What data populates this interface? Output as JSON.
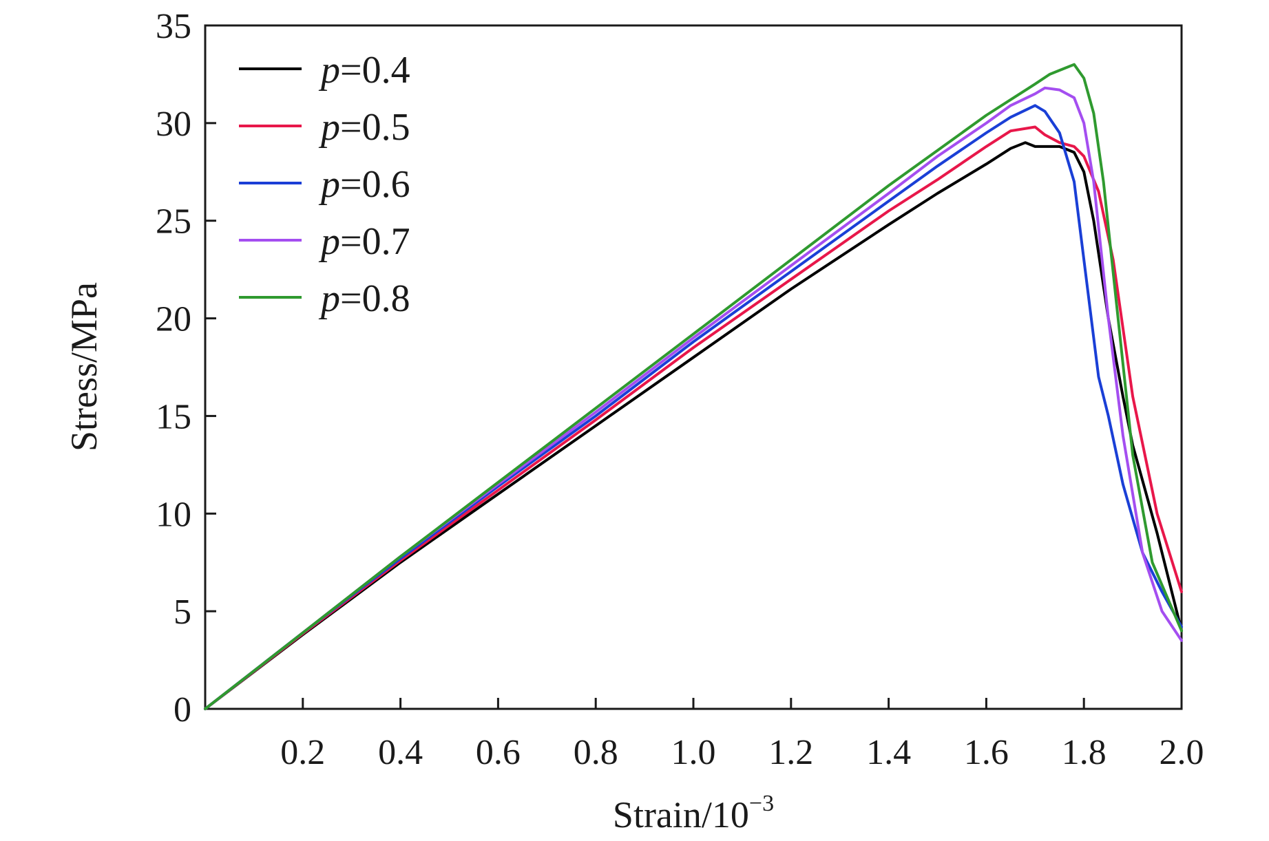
{
  "chart_data": {
    "type": "line",
    "xlabel_base": "Strain/10",
    "xlabel_exp": "−3",
    "ylabel": "Stress/MPa",
    "xlim": [
      0,
      2.0
    ],
    "ylim": [
      0,
      35
    ],
    "x_ticks": [
      0.2,
      0.4,
      0.6,
      0.8,
      1.0,
      1.2,
      1.4,
      1.6,
      1.8,
      2.0
    ],
    "x_tick_labels": [
      "0.2",
      "0.4",
      "0.6",
      "0.8",
      "1.0",
      "1.2",
      "1.4",
      "1.6",
      "1.8",
      "2.0"
    ],
    "y_ticks": [
      0,
      5,
      10,
      15,
      20,
      25,
      30,
      35
    ],
    "y_tick_labels": [
      "0",
      "5",
      "10",
      "15",
      "20",
      "25",
      "30",
      "35"
    ],
    "grid": false,
    "legend_position": "top-left",
    "series": [
      {
        "name_var": "p",
        "name_value": "=0.4",
        "color": "#000000",
        "x": [
          0,
          0.2,
          0.4,
          0.6,
          0.8,
          1.0,
          1.2,
          1.4,
          1.5,
          1.6,
          1.65,
          1.68,
          1.7,
          1.75,
          1.78,
          1.8,
          1.82,
          1.85,
          1.88,
          1.9,
          1.95,
          2.0
        ],
        "y": [
          0,
          3.8,
          7.5,
          11.0,
          14.5,
          18.0,
          21.5,
          24.8,
          26.4,
          27.9,
          28.7,
          29.0,
          28.8,
          28.8,
          28.5,
          27.5,
          25.0,
          20.0,
          16.0,
          13.5,
          9.0,
          4.0
        ]
      },
      {
        "name_var": "p",
        "name_value": "=0.5",
        "color": "#e8174a",
        "x": [
          0,
          0.2,
          0.4,
          0.6,
          0.8,
          1.0,
          1.2,
          1.4,
          1.5,
          1.6,
          1.65,
          1.7,
          1.72,
          1.75,
          1.78,
          1.8,
          1.83,
          1.86,
          1.9,
          1.95,
          2.0
        ],
        "y": [
          0,
          3.85,
          7.6,
          11.2,
          14.8,
          18.5,
          22.0,
          25.5,
          27.1,
          28.8,
          29.6,
          29.8,
          29.4,
          29.0,
          28.8,
          28.3,
          26.5,
          23.0,
          16.0,
          10.0,
          6.0
        ]
      },
      {
        "name_var": "p",
        "name_value": "=0.6",
        "color": "#1a3fd6",
        "x": [
          0,
          0.2,
          0.4,
          0.6,
          0.8,
          1.0,
          1.2,
          1.4,
          1.5,
          1.6,
          1.65,
          1.7,
          1.72,
          1.75,
          1.78,
          1.8,
          1.83,
          1.85,
          1.88,
          1.92,
          1.96,
          2.0
        ],
        "y": [
          0,
          3.9,
          7.7,
          11.4,
          15.0,
          18.8,
          22.4,
          26.0,
          27.8,
          29.5,
          30.3,
          30.9,
          30.6,
          29.5,
          27.0,
          23.0,
          17.0,
          15.0,
          11.5,
          8.0,
          6.0,
          4.2
        ]
      },
      {
        "name_var": "p",
        "name_value": "=0.7",
        "color": "#a44ef0",
        "x": [
          0,
          0.2,
          0.4,
          0.6,
          0.8,
          1.0,
          1.2,
          1.4,
          1.5,
          1.6,
          1.65,
          1.7,
          1.72,
          1.75,
          1.78,
          1.8,
          1.82,
          1.85,
          1.88,
          1.92,
          1.96,
          2.0
        ],
        "y": [
          0,
          3.9,
          7.8,
          11.5,
          15.2,
          19.0,
          22.7,
          26.4,
          28.3,
          30.0,
          30.9,
          31.5,
          31.8,
          31.7,
          31.3,
          30.0,
          27.0,
          20.0,
          14.0,
          8.0,
          5.0,
          3.5
        ]
      },
      {
        "name_var": "p",
        "name_value": "=0.8",
        "color": "#2f9a2f",
        "x": [
          0,
          0.2,
          0.4,
          0.6,
          0.8,
          1.0,
          1.2,
          1.4,
          1.5,
          1.6,
          1.65,
          1.7,
          1.73,
          1.76,
          1.78,
          1.8,
          1.82,
          1.84,
          1.87,
          1.9,
          1.94,
          2.0
        ],
        "y": [
          0,
          3.9,
          7.8,
          11.6,
          15.4,
          19.2,
          23.0,
          26.8,
          28.6,
          30.4,
          31.2,
          32.0,
          32.5,
          32.8,
          33.0,
          32.3,
          30.5,
          27.0,
          20.0,
          13.0,
          7.5,
          4.0
        ]
      }
    ]
  }
}
